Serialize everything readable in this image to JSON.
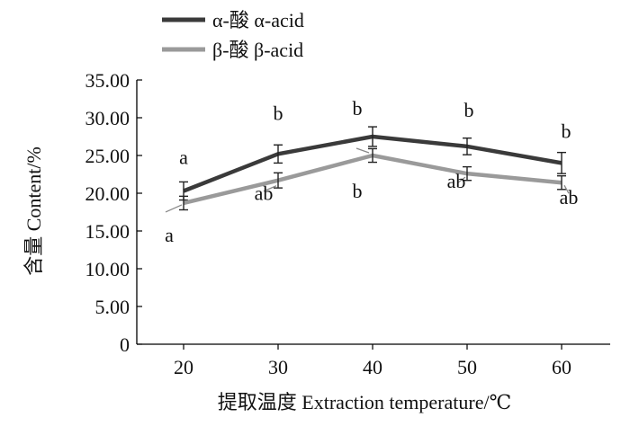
{
  "chart_data": {
    "type": "line",
    "xlabel": "提取温度  Extraction temperature/℃",
    "ylabel": "含量 Content/%",
    "categories": [
      "20",
      "30",
      "40",
      "50",
      "60"
    ],
    "ylim": [
      0,
      35
    ],
    "yticks": [
      "0",
      "5.00",
      "10.00",
      "15.00",
      "20.00",
      "25.00",
      "30.00",
      "35.00"
    ],
    "grid": false,
    "legend_position": "top-left",
    "series": [
      {
        "name": "α-酸 α-acid",
        "color": "#3a3a3a",
        "values": [
          20.3,
          25.2,
          27.5,
          26.2,
          24.0
        ],
        "errors": [
          1.2,
          1.2,
          1.3,
          1.1,
          1.4
        ],
        "labels": [
          "a",
          "b",
          "b",
          "b",
          "b"
        ]
      },
      {
        "name": "β-酸 β-acid",
        "color": "#9a9a9a",
        "values": [
          18.7,
          21.7,
          25.0,
          22.6,
          21.4
        ],
        "errors": [
          0.9,
          1.0,
          0.9,
          0.9,
          0.9
        ],
        "labels": [
          "a",
          "ab",
          "b",
          "ab",
          "ab"
        ]
      }
    ]
  }
}
